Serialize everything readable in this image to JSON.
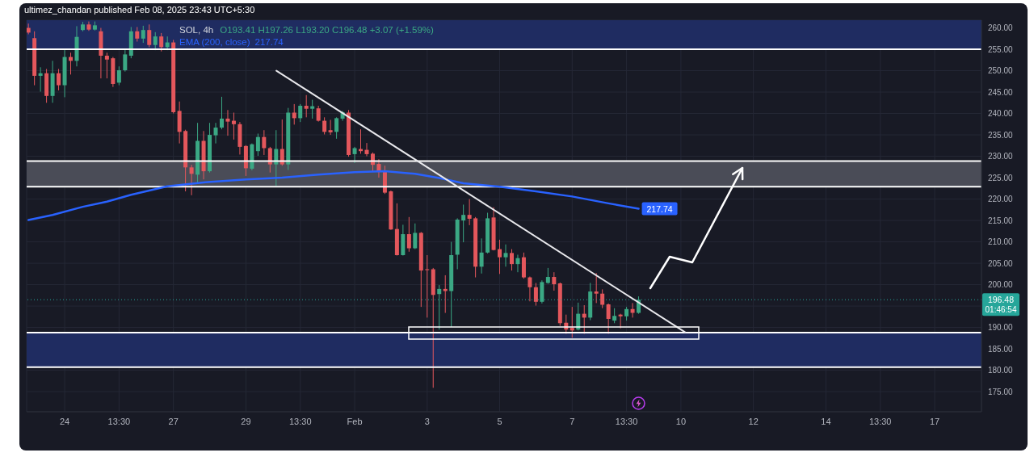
{
  "chart_data": {
    "type": "candlestick",
    "title": "SOL, 4h",
    "subtitle": "O193.41 H197.26 L193.20 C196.48 +3.07 (+1.59%)",
    "annotations": [
      "ultimez_chandan published Feb 08, 2025 23:43 UTC+5:30",
      "196.48",
      "01:46:54"
    ],
    "x": [
      "2025-01-23T01:30",
      "2025-01-23T05:30",
      "2025-01-23T09:30",
      "2025-01-23T13:30",
      "2025-01-23T17:30",
      "2025-01-23T21:30",
      "2025-01-24T01:30",
      "2025-01-24T05:30",
      "2025-01-24T09:30",
      "2025-01-24T13:30",
      "2025-01-24T17:30",
      "2025-01-24T21:30",
      "2025-01-25T01:30",
      "2025-01-25T05:30",
      "2025-01-25T09:30",
      "2025-01-25T13:30",
      "2025-01-25T17:30",
      "2025-01-25T21:30",
      "2025-01-26T01:30",
      "2025-01-26T05:30",
      "2025-01-26T09:30",
      "2025-01-26T13:30",
      "2025-01-26T17:30",
      "2025-01-26T21:30",
      "2025-01-27T01:30",
      "2025-01-27T05:30",
      "2025-01-27T09:30",
      "2025-01-27T13:30",
      "2025-01-27T17:30",
      "2025-01-27T21:30",
      "2025-01-28T01:30",
      "2025-01-28T05:30",
      "2025-01-28T09:30",
      "2025-01-28T13:30",
      "2025-01-28T17:30",
      "2025-01-28T21:30",
      "2025-01-29T01:30",
      "2025-01-29T05:30",
      "2025-01-29T09:30",
      "2025-01-29T13:30",
      "2025-01-29T17:30",
      "2025-01-29T21:30",
      "2025-01-30T01:30",
      "2025-01-30T05:30",
      "2025-01-30T09:30",
      "2025-01-30T13:30",
      "2025-01-30T17:30",
      "2025-01-30T21:30",
      "2025-01-31T01:30",
      "2025-01-31T05:30",
      "2025-01-31T09:30",
      "2025-01-31T13:30",
      "2025-01-31T17:30",
      "2025-01-31T21:30",
      "2025-02-01T01:30",
      "2025-02-01T05:30",
      "2025-02-01T09:30",
      "2025-02-01T13:30",
      "2025-02-01T17:30",
      "2025-02-01T21:30",
      "2025-02-02T01:30",
      "2025-02-02T05:30",
      "2025-02-02T09:30",
      "2025-02-02T13:30",
      "2025-02-02T17:30",
      "2025-02-02T21:30",
      "2025-02-03T01:30",
      "2025-02-03T05:30",
      "2025-02-03T09:30",
      "2025-02-03T13:30",
      "2025-02-03T17:30",
      "2025-02-03T21:30",
      "2025-02-04T01:30",
      "2025-02-04T05:30",
      "2025-02-04T09:30",
      "2025-02-04T13:30",
      "2025-02-04T17:30",
      "2025-02-04T21:30",
      "2025-02-05T01:30",
      "2025-02-05T05:30",
      "2025-02-05T09:30",
      "2025-02-05T13:30",
      "2025-02-05T17:30",
      "2025-02-05T21:30",
      "2025-02-06T01:30",
      "2025-02-06T05:30",
      "2025-02-06T09:30",
      "2025-02-06T13:30",
      "2025-02-06T17:30",
      "2025-02-06T21:30",
      "2025-02-07T01:30",
      "2025-02-07T05:30",
      "2025-02-07T09:30",
      "2025-02-07T13:30",
      "2025-02-07T17:30",
      "2025-02-07T21:30",
      "2025-02-08T01:30",
      "2025-02-08T05:30",
      "2025-02-08T09:30",
      "2025-02-08T13:30",
      "2025-02-08T17:30",
      "2025-02-08T21:30"
    ],
    "ohlc": [
      [
        260.0,
        261.0,
        258.5,
        258.9
      ],
      [
        257.6,
        259.2,
        246.6,
        248.8
      ],
      [
        248.8,
        250.8,
        245.1,
        249.4
      ],
      [
        249.4,
        250.4,
        242.5,
        244.1
      ],
      [
        244.1,
        252.3,
        242.5,
        249.4
      ],
      [
        249.4,
        250.4,
        245.4,
        246.6
      ],
      [
        246.6,
        254.8,
        243.8,
        253.2
      ],
      [
        253.2,
        254.2,
        249.1,
        252.3
      ],
      [
        252.3,
        260.4,
        251.0,
        257.9
      ],
      [
        259.5,
        261.4,
        259.2,
        260.8
      ],
      [
        260.8,
        261.5,
        259.3,
        259.6
      ],
      [
        259.6,
        261.5,
        259.4,
        260.6
      ],
      [
        259.2,
        260.0,
        248.2,
        253.5
      ],
      [
        253.5,
        254.2,
        248.2,
        252.6
      ],
      [
        252.9,
        253.2,
        246.2,
        246.9
      ],
      [
        247.2,
        251.0,
        246.6,
        250.1
      ],
      [
        250.1,
        254.8,
        249.8,
        253.8
      ],
      [
        253.5,
        260.2,
        252.9,
        259.2
      ],
      [
        259.2,
        260.2,
        256.8,
        257.5
      ],
      [
        257.5,
        260.5,
        256.5,
        259.5
      ],
      [
        259.5,
        260.8,
        255.5,
        256.0
      ],
      [
        256.0,
        259.0,
        254.8,
        258.0
      ],
      [
        258.0,
        258.8,
        254.5,
        255.5
      ],
      [
        255.5,
        258.0,
        254.8,
        256.6
      ],
      [
        256.6,
        257.2,
        240.0,
        240.3
      ],
      [
        240.6,
        242.8,
        233.0,
        235.7
      ],
      [
        235.9,
        236.2,
        221.8,
        227.4
      ],
      [
        227.4,
        228.0,
        220.9,
        225.9
      ],
      [
        225.7,
        237.8,
        223.7,
        233.6
      ],
      [
        233.6,
        235.9,
        224.6,
        226.5
      ],
      [
        226.5,
        237.8,
        226.2,
        235.0
      ],
      [
        234.9,
        237.8,
        233.0,
        236.7
      ],
      [
        236.7,
        243.9,
        236.3,
        238.8
      ],
      [
        238.8,
        240.8,
        234.8,
        238.1
      ],
      [
        238.3,
        240.2,
        233.9,
        237.5
      ],
      [
        237.5,
        238.0,
        230.4,
        232.2
      ],
      [
        232.4,
        232.6,
        225.4,
        227.2
      ],
      [
        227.1,
        233.0,
        226.7,
        232.8
      ],
      [
        231.2,
        235.3,
        230.1,
        234.5
      ],
      [
        234.5,
        236.1,
        230.3,
        231.9
      ],
      [
        231.9,
        232.2,
        226.2,
        228.1
      ],
      [
        228.1,
        236.1,
        223.1,
        231.7
      ],
      [
        231.7,
        238.6,
        227.8,
        228.1
      ],
      [
        228.1,
        241.3,
        226.8,
        240.2
      ],
      [
        240.2,
        242.2,
        237.4,
        238.9
      ],
      [
        238.9,
        242.2,
        238.0,
        241.8
      ],
      [
        241.8,
        244.3,
        239.1,
        241.1
      ],
      [
        241.1,
        243.2,
        238.8,
        241.7
      ],
      [
        241.2,
        241.8,
        238.1,
        238.3
      ],
      [
        238.3,
        239.1,
        235.1,
        235.7
      ],
      [
        236.1,
        238.5,
        235.0,
        235.6
      ],
      [
        235.7,
        239.1,
        234.1,
        238.9
      ],
      [
        238.8,
        240.6,
        238.3,
        240.3
      ],
      [
        240.2,
        240.8,
        229.9,
        230.3
      ],
      [
        230.5,
        232.2,
        228.4,
        231.9
      ],
      [
        231.7,
        236.3,
        230.6,
        231.2
      ],
      [
        231.5,
        233.1,
        230.0,
        230.5
      ],
      [
        230.6,
        230.9,
        226.5,
        228.0
      ],
      [
        228.2,
        229.3,
        225.0,
        226.3
      ],
      [
        226.5,
        227.8,
        221.2,
        221.5
      ],
      [
        221.8,
        222.0,
        212.8,
        212.9
      ],
      [
        213.0,
        219.0,
        206.8,
        206.9
      ],
      [
        206.9,
        214.0,
        206.8,
        211.8
      ],
      [
        211.8,
        215.8,
        207.7,
        208.5
      ],
      [
        208.5,
        214.3,
        208.3,
        212.1
      ],
      [
        212.1,
        212.3,
        194.8,
        203.3
      ],
      [
        203.6,
        206.9,
        192.3,
        203.4
      ],
      [
        203.6,
        203.9,
        175.9,
        197.6
      ],
      [
        197.8,
        199.9,
        189.5,
        199.0
      ],
      [
        199.0,
        202.2,
        193.4,
        198.5
      ],
      [
        198.5,
        210.0,
        190.1,
        206.9
      ],
      [
        207.0,
        215.5,
        203.6,
        215.2
      ],
      [
        215.0,
        218.7,
        209.9,
        216.3
      ],
      [
        216.3,
        220.0,
        213.9,
        215.4
      ],
      [
        215.5,
        215.8,
        201.7,
        204.2
      ],
      [
        204.2,
        210.8,
        202.6,
        207.5
      ],
      [
        207.5,
        216.8,
        207.3,
        215.5
      ],
      [
        215.7,
        218.1,
        208.0,
        208.1
      ],
      [
        208.3,
        210.5,
        202.5,
        206.4
      ],
      [
        206.4,
        209.4,
        204.2,
        207.4
      ],
      [
        207.4,
        208.3,
        203.3,
        204.8
      ],
      [
        204.8,
        207.0,
        202.9,
        206.2
      ],
      [
        206.4,
        207.5,
        201.4,
        201.7
      ],
      [
        201.7,
        201.9,
        196.1,
        199.4
      ],
      [
        199.4,
        200.4,
        195.1,
        196.0
      ],
      [
        196.0,
        201.0,
        195.6,
        200.6
      ],
      [
        200.4,
        203.9,
        200.2,
        201.8
      ],
      [
        201.8,
        202.9,
        198.6,
        200.1
      ],
      [
        200.3,
        200.5,
        190.4,
        191.0
      ],
      [
        191.1,
        193.0,
        188.5,
        189.5
      ],
      [
        189.9,
        194.8,
        187.6,
        189.3
      ],
      [
        189.5,
        195.8,
        189.3,
        193.2
      ],
      [
        193.2,
        195.2,
        188.5,
        192.3
      ],
      [
        192.3,
        200.4,
        191.7,
        198.4
      ],
      [
        198.4,
        202.7,
        195.7,
        197.9
      ],
      [
        197.9,
        198.9,
        194.5,
        195.3
      ],
      [
        195.4,
        195.6,
        188.5,
        192.0
      ],
      [
        191.6,
        194.5,
        191.0,
        192.7
      ],
      [
        193.0,
        193.2,
        189.8,
        192.6
      ],
      [
        192.6,
        194.8,
        191.6,
        194.3
      ],
      [
        194.3,
        195.7,
        192.3,
        193.41
      ],
      [
        193.41,
        197.26,
        193.2,
        196.48
      ]
    ],
    "colors": [
      "#e4575c",
      "#e4575c",
      "#3ba884",
      "#e4575c",
      "#3ba884",
      "#e4575c",
      "#3ba884",
      "#e4575c",
      "#3ba884",
      "#3ba884",
      "#e4575c",
      "#3ba884",
      "#e4575c",
      "#e4575c",
      "#e4575c",
      "#3ba884",
      "#3ba884",
      "#3ba884",
      "#e4575c",
      "#3ba884",
      "#e4575c",
      "#3ba884",
      "#e4575c",
      "#3ba884",
      "#e4575c",
      "#e4575c",
      "#e4575c",
      "#e4575c",
      "#3ba884",
      "#e4575c",
      "#3ba884",
      "#3ba884",
      "#3ba884",
      "#e4575c",
      "#e4575c",
      "#e4575c",
      "#e4575c",
      "#3ba884",
      "#3ba884",
      "#e4575c",
      "#e4575c",
      "#3ba884",
      "#e4575c",
      "#3ba884",
      "#e4575c",
      "#3ba884",
      "#e4575c",
      "#3ba884",
      "#e4575c",
      "#e4575c",
      "#e4575c",
      "#3ba884",
      "#3ba884",
      "#e4575c",
      "#3ba884",
      "#e4575c",
      "#e4575c",
      "#e4575c",
      "#e4575c",
      "#e4575c",
      "#e4575c",
      "#e4575c",
      "#3ba884",
      "#e4575c",
      "#3ba884",
      "#e4575c",
      "#e4575c",
      "#e4575c",
      "#3ba884",
      "#e4575c",
      "#3ba884",
      "#3ba884",
      "#3ba884",
      "#e4575c",
      "#e4575c",
      "#3ba884",
      "#3ba884",
      "#e4575c",
      "#e4575c",
      "#3ba884",
      "#e4575c",
      "#3ba884",
      "#e4575c",
      "#e4575c",
      "#e4575c",
      "#3ba884",
      "#3ba884",
      "#e4575c",
      "#e4575c",
      "#e4575c",
      "#e4575c",
      "#3ba884",
      "#e4575c",
      "#3ba884",
      "#e4575c",
      "#e4575c",
      "#e4575c",
      "#3ba884",
      "#e4575c",
      "#3ba884",
      "#e4575c",
      "#3ba884"
    ],
    "series": [
      {
        "type": "line",
        "name": "EMA (200, close)",
        "color": "#2962ff",
        "x": [
          "2025-01-23T01:30",
          "2025-01-23T17:30",
          "2025-01-24T13:30",
          "2025-01-25T05:30",
          "2025-01-25T21:30",
          "2025-01-26T21:30",
          "2025-01-27T21:30",
          "2025-01-29T01:30",
          "2025-01-30T01:30",
          "2025-01-31T01:30",
          "2025-02-01T01:30",
          "2025-02-01T21:30",
          "2025-02-02T17:30",
          "2025-02-03T09:30",
          "2025-02-04T01:30",
          "2025-02-05T01:30",
          "2025-02-06T01:30",
          "2025-02-07T01:30",
          "2025-02-08T01:30",
          "2025-02-08T21:30"
        ],
        "values": [
          215.1,
          216.3,
          218.2,
          219.4,
          221.0,
          223.0,
          223.9,
          224.6,
          225.0,
          225.7,
          226.3,
          226.5,
          225.9,
          224.9,
          223.7,
          222.9,
          221.8,
          220.6,
          219.0,
          217.74
        ],
        "value_labels": [
          null,
          null,
          null,
          null,
          null,
          null,
          null,
          null,
          null,
          null,
          null,
          null,
          null,
          null,
          null,
          null,
          null,
          null,
          null,
          "217.74"
        ]
      },
      {
        "type": "line",
        "color": "#e8e8ec",
        "x": [
          "2025-01-29T21:40",
          "2025-02-10T04:10"
        ],
        "values": [
          250.0,
          188.9
        ]
      }
    ],
    "bands": [
      {
        "axis": "y",
        "from": 255.0,
        "to": 261.8,
        "color": "#1f2c61"
      },
      {
        "axis": "y",
        "from": 222.9,
        "to": 228.9,
        "color": "#4a4c57"
      },
      {
        "axis": "y",
        "from": 180.7,
        "to": 188.8,
        "color": "#1f2c61"
      }
    ],
    "ref_lines": [
      {
        "axis": "y",
        "value": 255.0,
        "color": "#ffffff"
      },
      {
        "axis": "y",
        "value": 228.9,
        "color": "#ffffff"
      },
      {
        "axis": "y",
        "value": 222.9,
        "color": "#ffffff"
      },
      {
        "axis": "y",
        "value": 188.8,
        "color": "#ffffff"
      },
      {
        "axis": "y",
        "value": 180.7,
        "color": "#ffffff"
      },
      {
        "axis": "y",
        "value": 196.48,
        "color": "#26a69a",
        "line_style": "dotted"
      }
    ],
    "xlim": [
      "2025-01-23T00:20",
      "2025-02-18T08:30"
    ],
    "xticks": [
      {
        "value": "2025-01-24T01:30",
        "label": "24"
      },
      {
        "value": "2025-01-25T13:30",
        "label": "13:30"
      },
      {
        "value": "2025-01-27T01:30",
        "label": "27"
      },
      {
        "value": "2025-01-29T01:30",
        "label": "29"
      },
      {
        "value": "2025-01-30T13:30",
        "label": "13:30"
      },
      {
        "value": "2025-02-01T01:30",
        "label": "Feb"
      },
      {
        "value": "2025-02-03T01:30",
        "label": "3"
      },
      {
        "value": "2025-02-05T01:30",
        "label": "5"
      },
      {
        "value": "2025-02-07T01:30",
        "label": "7"
      },
      {
        "value": "2025-02-08T13:30",
        "label": "13:30"
      },
      {
        "value": "2025-02-10T01:30",
        "label": "10"
      },
      {
        "value": "2025-02-12T01:30",
        "label": "12"
      },
      {
        "value": "2025-02-14T01:30",
        "label": "14"
      },
      {
        "value": "2025-02-15T13:30",
        "label": "13:30"
      },
      {
        "value": "2025-02-17T01:30",
        "label": "17"
      }
    ],
    "ylim": [
      170.3,
      261.8
    ],
    "yticks": [
      {
        "value": 175,
        "label": "175.00"
      },
      {
        "value": 180,
        "label": "180.00"
      },
      {
        "value": 185,
        "label": "185.00"
      },
      {
        "value": 190,
        "label": "190.00"
      },
      {
        "value": 195,
        "label": null
      },
      {
        "value": 200,
        "label": "200.00"
      },
      {
        "value": 205,
        "label": "205.00"
      },
      {
        "value": 210,
        "label": "210.00"
      },
      {
        "value": 215,
        "label": "215.00"
      },
      {
        "value": 220,
        "label": "220.00"
      },
      {
        "value": 225,
        "label": "225.00"
      },
      {
        "value": 230,
        "label": "230.00"
      },
      {
        "value": 235,
        "label": "235.00"
      },
      {
        "value": 240,
        "label": "240.00"
      },
      {
        "value": 245,
        "label": "245.00"
      },
      {
        "value": 250,
        "label": "250.00"
      },
      {
        "value": 255,
        "label": "255.00"
      },
      {
        "value": 260,
        "label": "260.00"
      }
    ],
    "grid": true,
    "legend": "top left"
  }
}
